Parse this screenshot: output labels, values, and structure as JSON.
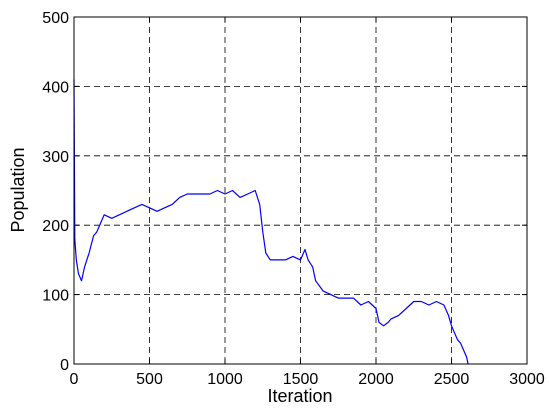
{
  "chart_data": {
    "type": "line",
    "title": "",
    "xlabel": "Iteration",
    "ylabel": "Population",
    "xlim": [
      0,
      3000
    ],
    "ylim": [
      0,
      500
    ],
    "xticks": [
      0,
      500,
      1000,
      1500,
      2000,
      2500,
      3000
    ],
    "yticks": [
      0,
      100,
      200,
      300,
      400,
      500
    ],
    "xtick_labels": [
      "0",
      "500",
      "1000",
      "1500",
      "2000",
      "2500",
      "3000"
    ],
    "ytick_labels": [
      "0",
      "100",
      "200",
      "300",
      "400",
      "500"
    ],
    "grid": true,
    "legend": false,
    "series": [
      {
        "color": "#0000ff",
        "x": [
          0,
          5,
          15,
          30,
          50,
          70,
          100,
          130,
          150,
          180,
          200,
          250,
          300,
          350,
          400,
          450,
          500,
          550,
          600,
          650,
          700,
          750,
          800,
          850,
          900,
          950,
          1000,
          1050,
          1100,
          1150,
          1200,
          1230,
          1250,
          1270,
          1300,
          1350,
          1400,
          1450,
          1500,
          1530,
          1550,
          1580,
          1600,
          1650,
          1700,
          1750,
          1800,
          1850,
          1900,
          1950,
          2000,
          2020,
          2050,
          2080,
          2100,
          2150,
          2200,
          2250,
          2300,
          2350,
          2400,
          2450,
          2480,
          2500,
          2520,
          2540,
          2560,
          2580,
          2600,
          2610
        ],
        "y": [
          410,
          180,
          150,
          130,
          120,
          140,
          160,
          185,
          190,
          205,
          215,
          210,
          215,
          220,
          225,
          230,
          225,
          220,
          225,
          230,
          240,
          245,
          245,
          245,
          245,
          250,
          245,
          250,
          240,
          245,
          250,
          230,
          190,
          160,
          150,
          150,
          150,
          155,
          150,
          165,
          150,
          140,
          120,
          105,
          100,
          95,
          95,
          95,
          85,
          90,
          80,
          60,
          55,
          60,
          65,
          70,
          80,
          90,
          90,
          85,
          90,
          85,
          70,
          55,
          45,
          35,
          30,
          20,
          10,
          0
        ]
      }
    ]
  }
}
